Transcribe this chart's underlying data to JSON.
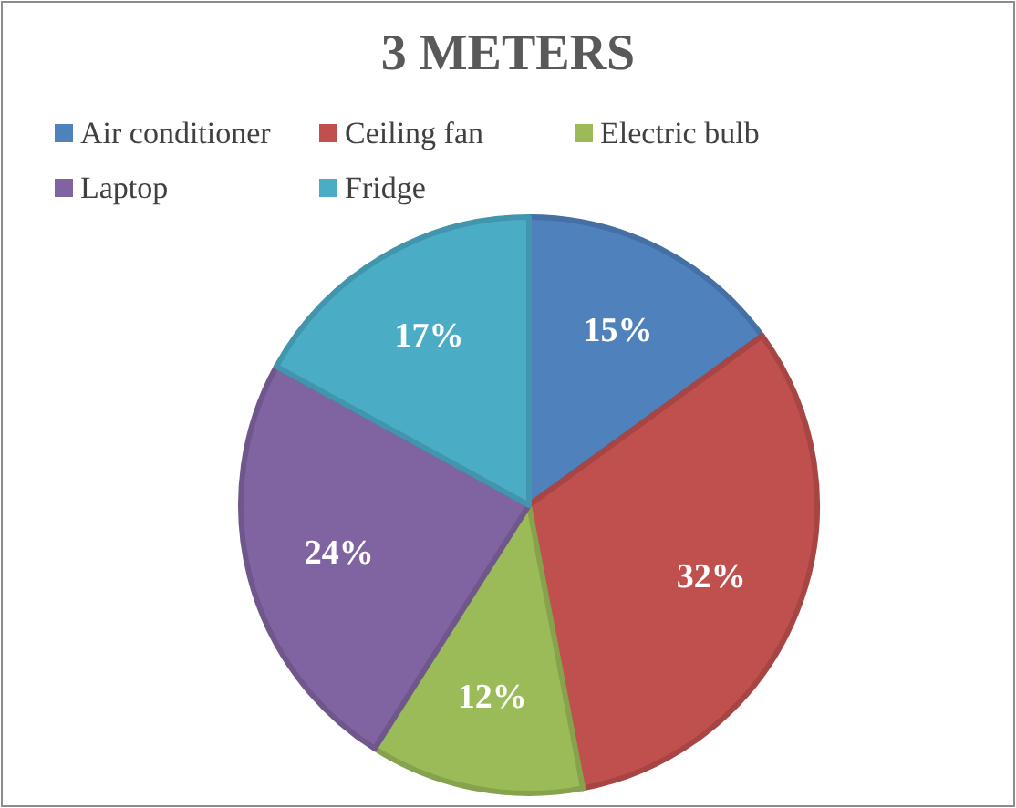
{
  "chart_data": {
    "type": "pie",
    "title": "3 METERS",
    "categories": [
      "Air conditioner",
      "Ceiling fan",
      "Electric bulb",
      "Laptop",
      "Fridge"
    ],
    "values": [
      15,
      32,
      12,
      24,
      17
    ],
    "colors": [
      "#4f81bd",
      "#c0504d",
      "#9bbb59",
      "#8064a2",
      "#4bacc6"
    ],
    "value_labels": [
      "15%",
      "32%",
      "12%",
      "24%",
      "17%"
    ],
    "legend": "top"
  }
}
